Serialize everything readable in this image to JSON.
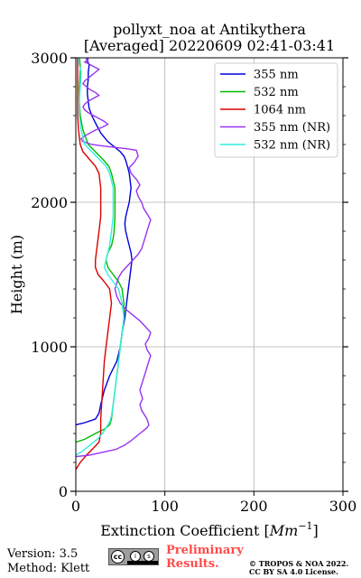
{
  "header": {
    "title_line1": "pollyxt_noa at Antikythera",
    "title_line2": "[Averaged] 20220609 02:41-03:41"
  },
  "chart_data": {
    "type": "line",
    "title": "pollyxt_noa at Antikythera [Averaged] 20220609 02:41-03:41",
    "xlabel": "Extinction Coefficient [Mm^-1]",
    "ylabel": "Height (m)",
    "xlim": [
      0,
      300
    ],
    "ylim": [
      0,
      3000
    ],
    "xticks": [
      "0",
      "100",
      "200",
      "300"
    ],
    "yticks": [
      "0",
      "1000",
      "2000",
      "3000"
    ],
    "grid": true,
    "legend_position": "top-right",
    "series": [
      {
        "name": "355 nm",
        "color": "#0000dd",
        "x": [
          0,
          10,
          22,
          26,
          28,
          32,
          38,
          46,
          50,
          52,
          55,
          57,
          58,
          59,
          60,
          61,
          62,
          63,
          62,
          60,
          58,
          56,
          55,
          56,
          58,
          60,
          61,
          62,
          61,
          60,
          58,
          56,
          54,
          50,
          44,
          36,
          28,
          22,
          18,
          15,
          14,
          13,
          13,
          14,
          14,
          15,
          13,
          12,
          13
        ],
        "y": [
          460,
          475,
          500,
          540,
          600,
          700,
          800,
          900,
          1000,
          1100,
          1200,
          1300,
          1350,
          1400,
          1450,
          1500,
          1550,
          1600,
          1650,
          1700,
          1750,
          1800,
          1850,
          1900,
          1950,
          2000,
          2050,
          2100,
          2150,
          2200,
          2250,
          2290,
          2320,
          2350,
          2380,
          2420,
          2480,
          2550,
          2600,
          2650,
          2700,
          2750,
          2800,
          2850,
          2900,
          2950,
          2980,
          3000,
          3000
        ]
      },
      {
        "name": "532 nm",
        "color": "#00bb00",
        "x": [
          0,
          10,
          22,
          32,
          38,
          40,
          42,
          44,
          46,
          48,
          50,
          52,
          54,
          54,
          52,
          48,
          42,
          36,
          34,
          36,
          40,
          42,
          43,
          44,
          44,
          44,
          42,
          40,
          37,
          30,
          22,
          14,
          8,
          5,
          4,
          4,
          5,
          5,
          4
        ],
        "y": [
          340,
          360,
          400,
          430,
          460,
          500,
          600,
          700,
          800,
          900,
          1000,
          1100,
          1200,
          1300,
          1400,
          1450,
          1500,
          1550,
          1600,
          1650,
          1700,
          1750,
          1800,
          1900,
          2000,
          2100,
          2150,
          2200,
          2250,
          2300,
          2350,
          2400,
          2500,
          2600,
          2700,
          2800,
          2900,
          2950,
          3000
        ]
      },
      {
        "name": "1064 nm",
        "color": "#dd0000",
        "x": [
          0,
          5,
          12,
          20,
          26,
          28,
          28,
          29,
          30,
          31,
          32,
          34,
          36,
          38,
          40,
          38,
          32,
          25,
          22,
          22,
          24,
          26,
          28,
          28,
          28,
          26,
          22,
          15,
          8,
          5,
          3,
          2,
          2,
          2,
          2
        ],
        "y": [
          150,
          200,
          250,
          300,
          340,
          400,
          500,
          600,
          700,
          800,
          900,
          1000,
          1100,
          1200,
          1300,
          1400,
          1450,
          1500,
          1550,
          1600,
          1700,
          1800,
          1900,
          2000,
          2100,
          2200,
          2250,
          2300,
          2350,
          2400,
          2500,
          2600,
          2700,
          2800,
          3000
        ]
      },
      {
        "name": "355 nm (NR)",
        "color": "#9933ee",
        "x": [
          0,
          15,
          30,
          45,
          55,
          62,
          68,
          72,
          76,
          80,
          82,
          80,
          74,
          72,
          75,
          72,
          74,
          76,
          78,
          80,
          82,
          84,
          80,
          78,
          82,
          84,
          78,
          72,
          64,
          56,
          50,
          46,
          44,
          46,
          48,
          52,
          58,
          64,
          70,
          74,
          76,
          78,
          80,
          82,
          84,
          80,
          76,
          74,
          70,
          68,
          72,
          68,
          62,
          60,
          66,
          70,
          68,
          58,
          44,
          30,
          18,
          8,
          6,
          10,
          16,
          22,
          30,
          36,
          32,
          26,
          20,
          14,
          10,
          8,
          10,
          14,
          20,
          26,
          22,
          16,
          12,
          8,
          10,
          14,
          18,
          22,
          26,
          20,
          14,
          10,
          12,
          14,
          12
        ],
        "y": [
          240,
          250,
          270,
          290,
          320,
          350,
          380,
          400,
          420,
          440,
          460,
          500,
          560,
          600,
          640,
          700,
          740,
          780,
          820,
          860,
          900,
          940,
          980,
          1020,
          1060,
          1100,
          1140,
          1180,
          1220,
          1260,
          1300,
          1350,
          1400,
          1440,
          1480,
          1520,
          1560,
          1600,
          1640,
          1680,
          1720,
          1760,
          1800,
          1840,
          1880,
          1920,
          1960,
          2000,
          2040,
          2080,
          2120,
          2160,
          2200,
          2240,
          2280,
          2320,
          2360,
          2370,
          2380,
          2390,
          2400,
          2420,
          2440,
          2460,
          2480,
          2500,
          2520,
          2540,
          2560,
          2580,
          2600,
          2620,
          2640,
          2660,
          2680,
          2700,
          2720,
          2740,
          2760,
          2780,
          2800,
          2820,
          2840,
          2860,
          2880,
          2900,
          2920,
          2940,
          2960,
          2970,
          2980,
          2990,
          3000
        ]
      },
      {
        "name": "532 nm (NR)",
        "color": "#33eedd",
        "x": [
          0,
          8,
          16,
          24,
          30,
          34,
          38,
          40,
          42,
          44,
          46,
          48,
          50,
          52,
          54,
          52,
          48,
          42,
          36,
          32,
          34,
          38,
          40,
          42,
          42,
          42,
          40,
          38,
          34,
          26,
          18,
          10,
          6,
          4,
          4,
          5,
          6,
          4,
          3
        ],
        "y": [
          250,
          280,
          320,
          360,
          400,
          440,
          480,
          520,
          600,
          700,
          800,
          900,
          1000,
          1100,
          1200,
          1300,
          1400,
          1450,
          1500,
          1550,
          1600,
          1700,
          1800,
          1900,
          2000,
          2100,
          2150,
          2200,
          2250,
          2300,
          2350,
          2400,
          2500,
          2600,
          2700,
          2800,
          2900,
          2950,
          3000
        ]
      }
    ]
  },
  "footer": {
    "version": "Version: 3.5",
    "method": "Method: Klett",
    "license_badge": {
      "cc": "cc",
      "by": "i",
      "sa": "s"
    },
    "preliminary_line1": "Preliminary",
    "preliminary_line2": "Results.",
    "copyright_line1": "© TROPOS & NOA 2022.",
    "copyright_line2": "CC BY SA 4.0 License."
  }
}
